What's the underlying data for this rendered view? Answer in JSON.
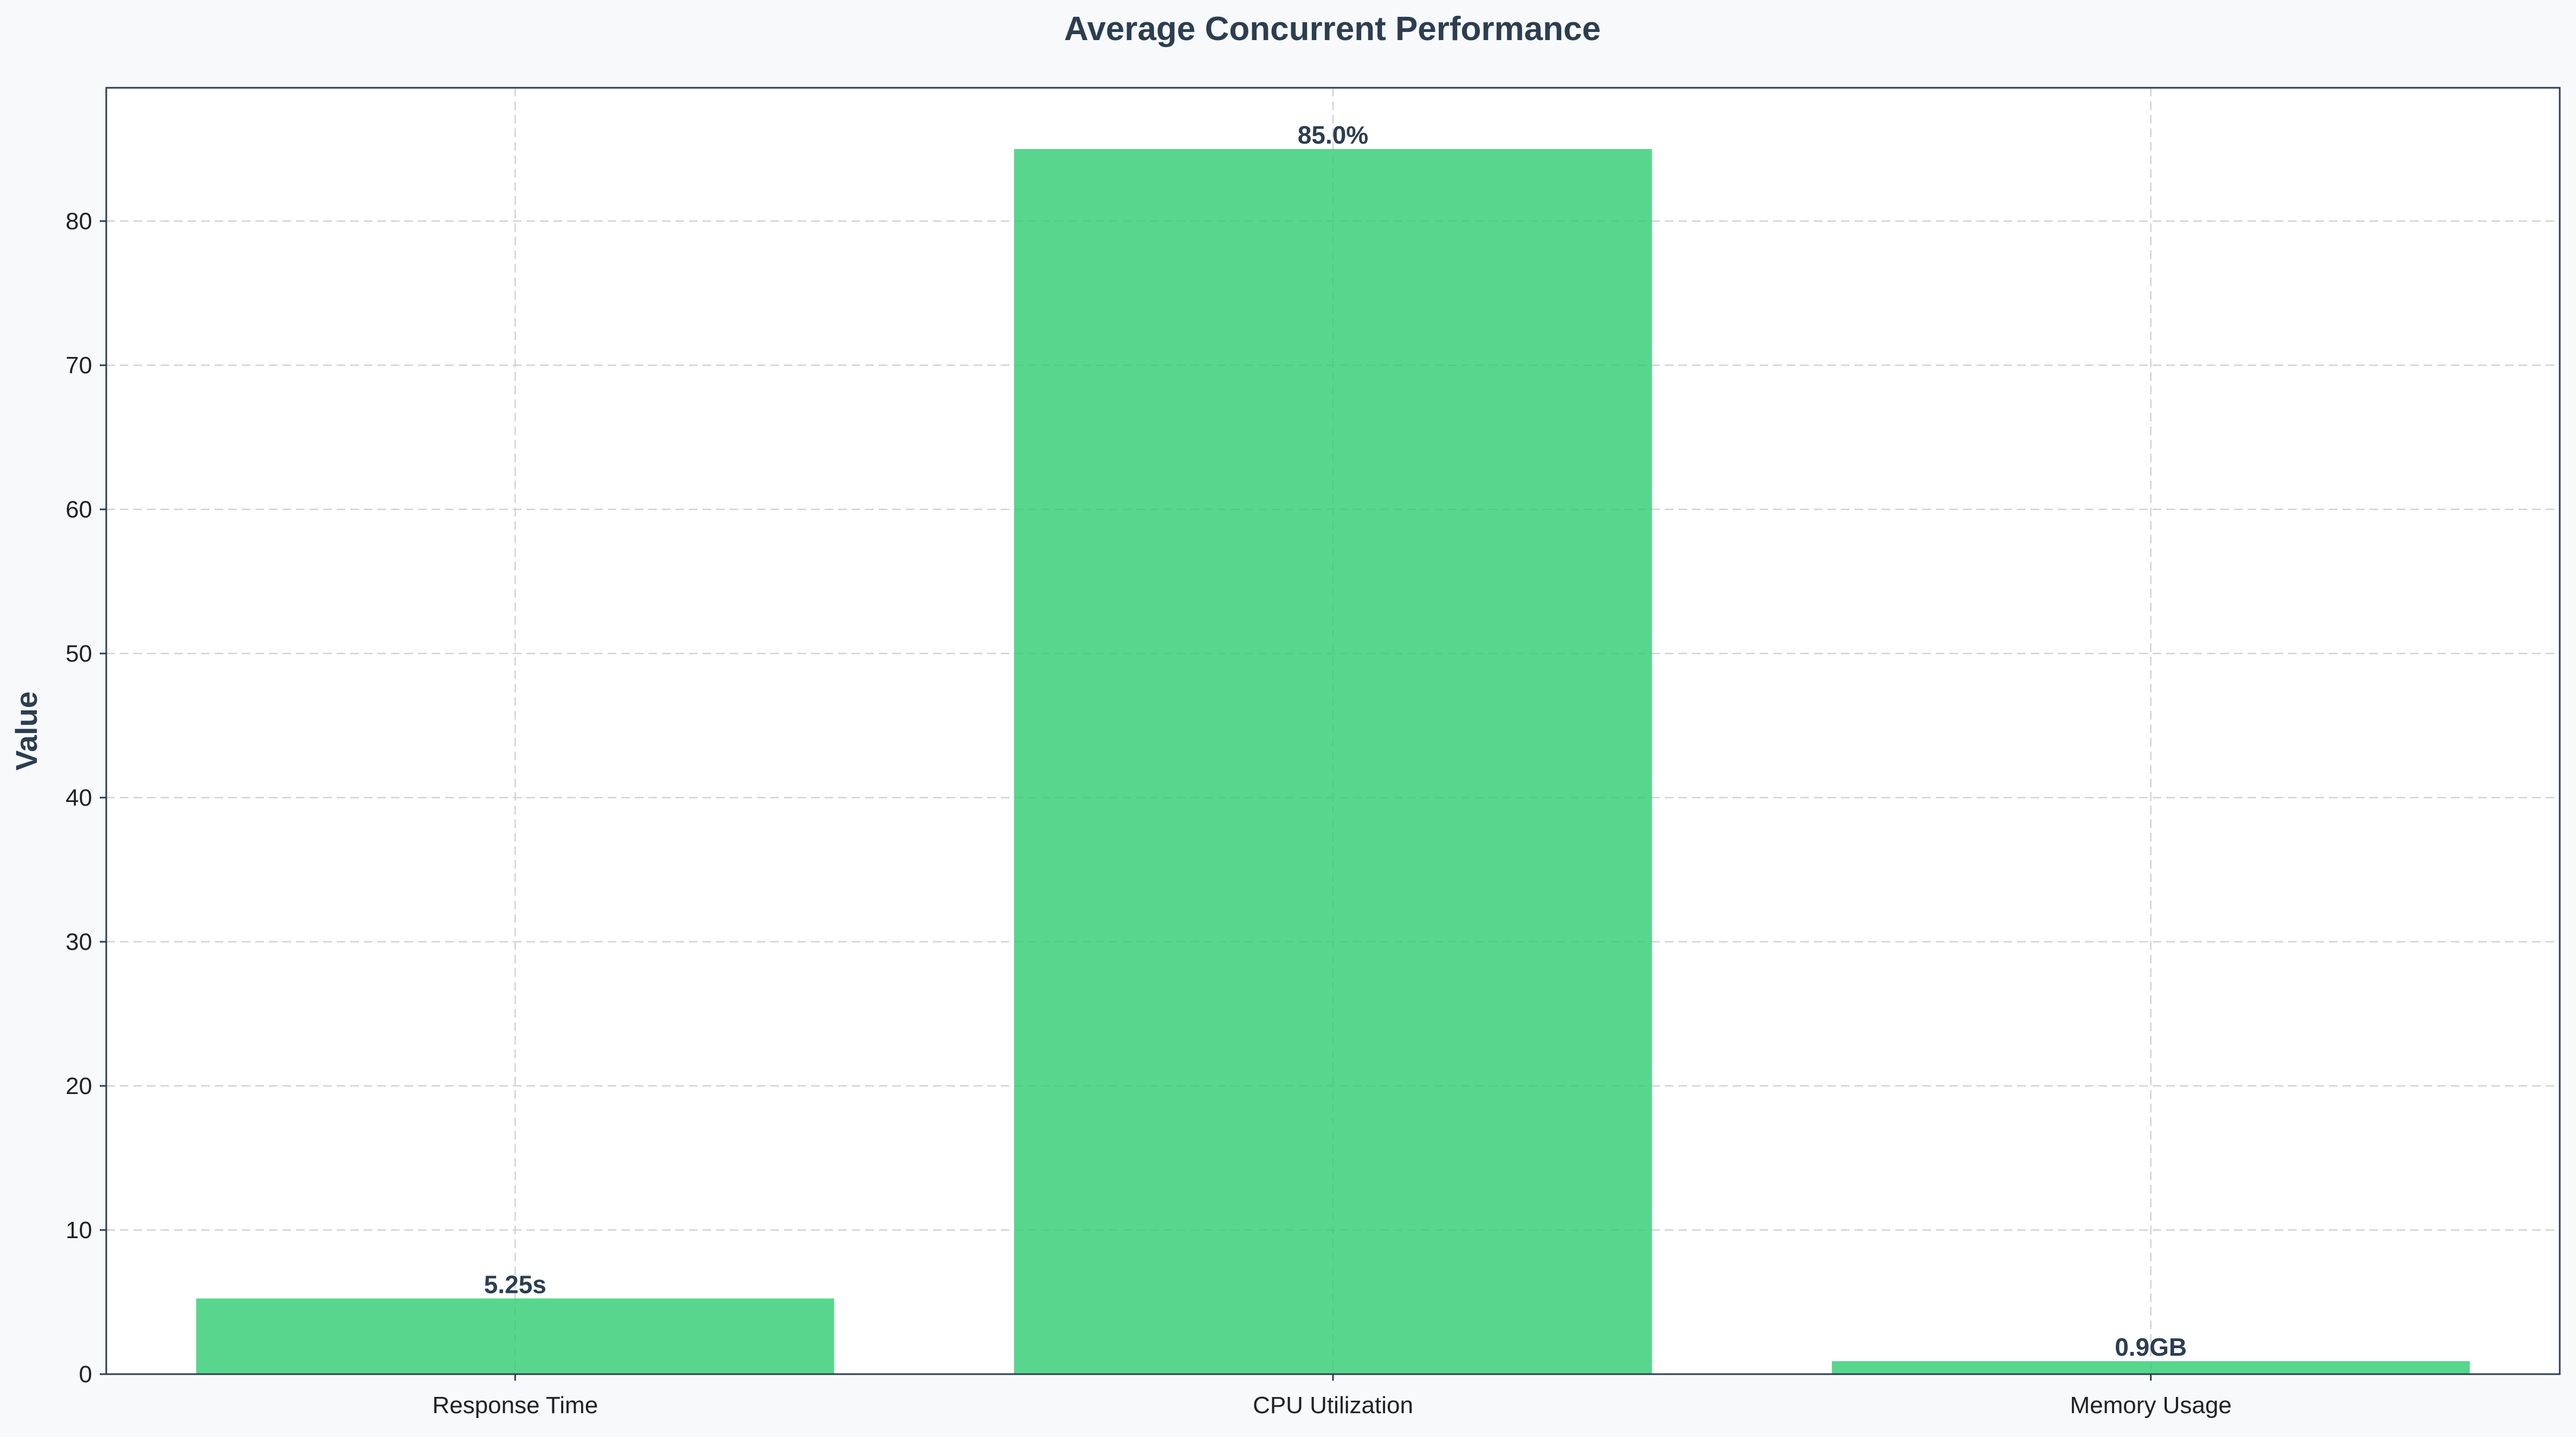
{
  "chart_data": {
    "type": "bar",
    "title": "Average Concurrent Performance",
    "xlabel": "",
    "ylabel": "Value",
    "categories": [
      "Response Time",
      "CPU Utilization",
      "Memory Usage"
    ],
    "values": [
      5.25,
      85.0,
      0.9
    ],
    "data_labels": [
      "5.25s",
      "85.0%",
      "0.9GB"
    ],
    "ylim": [
      0,
      89.25
    ],
    "yticks": [
      0,
      10,
      20,
      30,
      40,
      50,
      60,
      70,
      80
    ],
    "grid": true,
    "bar_color": "#2ecc71",
    "text_color": "#2c3e50",
    "background": "#f7f9fb"
  }
}
